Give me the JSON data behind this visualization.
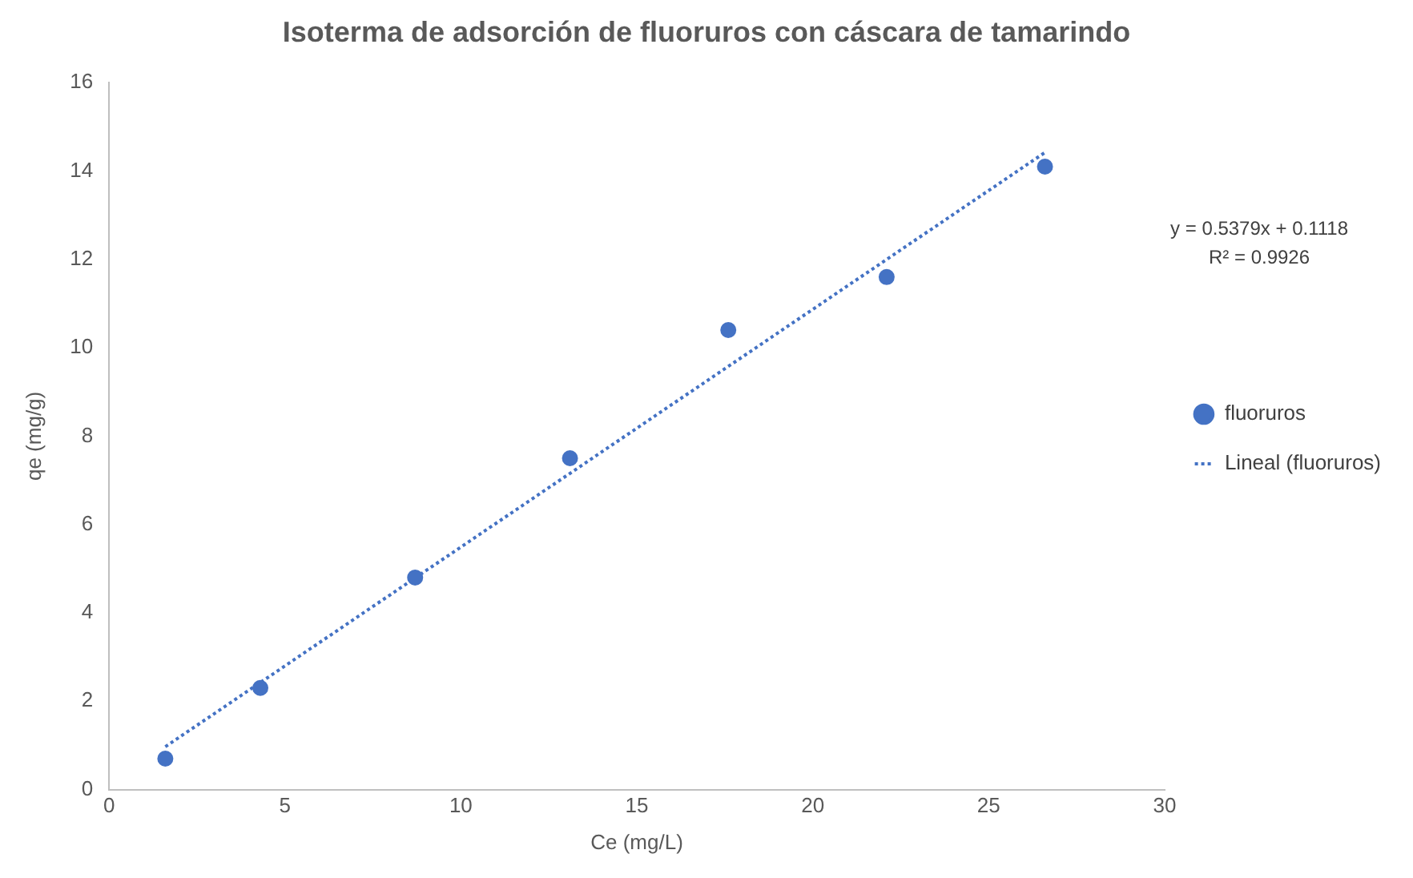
{
  "chart_data": {
    "type": "scatter",
    "title": "Isoterma de adsorción de fluoruros con cáscara de tamarindo",
    "xlabel": "Ce (mg/L)",
    "ylabel": "qe (mg/g)",
    "series": [
      {
        "name": "fluoruros",
        "type": "scatter",
        "color": "#4472c4",
        "marker": "circle",
        "x": [
          1.6,
          4.3,
          8.7,
          13.1,
          17.6,
          22.1,
          26.6
        ],
        "values": [
          0.7,
          2.3,
          4.8,
          7.5,
          10.4,
          11.6,
          14.1
        ]
      },
      {
        "name": "Lineal (fluoruros)",
        "type": "line",
        "color": "#4472c4",
        "marker": "none",
        "line_style": "dotted",
        "x": [
          1.6,
          26.6
        ],
        "values": [
          0.97,
          14.42
        ]
      }
    ],
    "xlim": [
      0,
      30
    ],
    "xticks": [
      0,
      5,
      10,
      15,
      20,
      25,
      30
    ],
    "ylim": [
      0,
      16
    ],
    "yticks": [
      0,
      2,
      4,
      6,
      8,
      10,
      12,
      14,
      16
    ],
    "grid": false,
    "legend": "right",
    "annotations": [
      "y = 0.5379x + 0.1118",
      "R² = 0.9926"
    ]
  }
}
